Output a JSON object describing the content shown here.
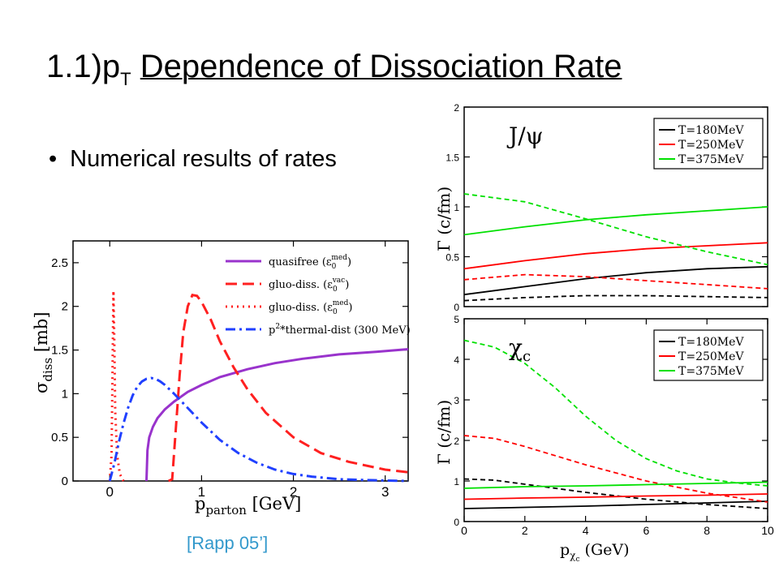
{
  "slide": {
    "title_prefix": "1.1)p",
    "title_sub": "T",
    "title_rest": "Dependence of Dissociation Rate",
    "bullet": "Numerical results of rates",
    "citation": "[Rapp 05’]"
  },
  "chart_data": [
    {
      "id": "sigma",
      "type": "line",
      "xlabel": "p",
      "xlabel_sub": "parton",
      "xlabel_unit": "[GeV]",
      "ylabel": "σ",
      "ylabel_sub": "diss",
      "ylabel_unit": "[mb]",
      "xlim": [
        -0.4,
        3.25
      ],
      "ylim": [
        0,
        2.75
      ],
      "xticks": [
        "0",
        "1",
        "2",
        "3"
      ],
      "yticks": [
        "0",
        "0.5",
        "1",
        "1.5",
        "2",
        "2.5"
      ],
      "series": [
        {
          "name": "quasifree (ε0med)",
          "legend_main": "quasifree (ε",
          "legend_sub": "0",
          "legend_sup": "med",
          "legend_end": ")",
          "color": "#9933cc",
          "dash": "solid",
          "x": [
            0.4,
            0.41,
            0.43,
            0.47,
            0.52,
            0.6,
            0.7,
            0.85,
            1.0,
            1.2,
            1.5,
            1.8,
            2.1,
            2.5,
            2.9,
            3.25
          ],
          "y": [
            0,
            0.35,
            0.5,
            0.62,
            0.72,
            0.82,
            0.91,
            1.02,
            1.1,
            1.19,
            1.28,
            1.35,
            1.4,
            1.45,
            1.48,
            1.51
          ]
        },
        {
          "name": "gluo-diss. (ε0vac)",
          "legend_main": "gluo-diss. (ε",
          "legend_sub": "0",
          "legend_sup": "vac",
          "legend_end": ")",
          "color": "#ff2020",
          "dash": "long",
          "x": [
            0.64,
            0.68,
            0.72,
            0.76,
            0.8,
            0.85,
            0.9,
            0.95,
            1.0,
            1.1,
            1.2,
            1.35,
            1.5,
            1.7,
            2.0,
            2.3,
            2.6,
            3.0,
            3.25
          ],
          "y": [
            0,
            0.02,
            0.6,
            1.2,
            1.7,
            2.0,
            2.13,
            2.12,
            2.05,
            1.85,
            1.6,
            1.3,
            1.05,
            0.78,
            0.5,
            0.32,
            0.22,
            0.13,
            0.1
          ]
        },
        {
          "name": "gluo-diss. (ε0med)",
          "legend_main": "gluo-diss. (ε",
          "legend_sub": "0",
          "legend_sup": "med",
          "legend_end": ")",
          "color": "#ff2020",
          "dash": "dot",
          "x": [
            0.0,
            0.02,
            0.03,
            0.04,
            0.05,
            0.06,
            0.08,
            0.11,
            0.15
          ],
          "y": [
            0,
            0.3,
            1.3,
            2.18,
            1.6,
            0.8,
            0.3,
            0.08,
            0
          ]
        },
        {
          "name": "p²*thermal-dist (300 MeV)",
          "legend_main": "p",
          "legend_sup": "2",
          "legend_end": "*thermal-dist (300 MeV)",
          "color": "#2040ff",
          "dash": "dashdot",
          "x": [
            0.0,
            0.05,
            0.1,
            0.15,
            0.2,
            0.25,
            0.3,
            0.35,
            0.4,
            0.45,
            0.5,
            0.55,
            0.6,
            0.7,
            0.8,
            0.9,
            1.0,
            1.2,
            1.4,
            1.6,
            1.8,
            2.0,
            2.2,
            2.5,
            2.8,
            3.25
          ],
          "y": [
            0,
            0.2,
            0.45,
            0.66,
            0.84,
            0.98,
            1.08,
            1.14,
            1.17,
            1.18,
            1.17,
            1.14,
            1.1,
            1.0,
            0.89,
            0.78,
            0.67,
            0.47,
            0.32,
            0.21,
            0.13,
            0.08,
            0.05,
            0.02,
            0.01,
            0.0
          ]
        }
      ]
    },
    {
      "id": "jpsi",
      "type": "line",
      "panel_label": "J/ψ",
      "ylabel": "Γ (c/fm)",
      "xlim": [
        0,
        10
      ],
      "ylim": [
        0,
        2
      ],
      "yticks": [
        "0",
        "0.5",
        "1",
        "1.5",
        "2"
      ],
      "legend": [
        {
          "name": "T=180MeV",
          "color": "#000000"
        },
        {
          "name": "T=250MeV",
          "color": "#ff0000"
        },
        {
          "name": "T=375MeV",
          "color": "#00e000"
        }
      ],
      "series": [
        {
          "name": "T=180MeV solid",
          "color": "#000000",
          "dash": "solid",
          "x": [
            0,
            2,
            4,
            6,
            8,
            10
          ],
          "y": [
            0.12,
            0.2,
            0.28,
            0.34,
            0.38,
            0.4
          ]
        },
        {
          "name": "T=180MeV dashed",
          "color": "#000000",
          "dash": "dash",
          "x": [
            0,
            2,
            4,
            6,
            8,
            10
          ],
          "y": [
            0.06,
            0.09,
            0.11,
            0.11,
            0.1,
            0.09
          ]
        },
        {
          "name": "T=250MeV solid",
          "color": "#ff0000",
          "dash": "solid",
          "x": [
            0,
            2,
            4,
            6,
            8,
            10
          ],
          "y": [
            0.38,
            0.46,
            0.53,
            0.58,
            0.61,
            0.64
          ]
        },
        {
          "name": "T=250MeV dashed",
          "color": "#ff0000",
          "dash": "dash",
          "x": [
            0,
            2,
            4,
            6,
            8,
            10
          ],
          "y": [
            0.27,
            0.32,
            0.3,
            0.26,
            0.22,
            0.18
          ]
        },
        {
          "name": "T=375MeV solid",
          "color": "#00e000",
          "dash": "solid",
          "x": [
            0,
            2,
            4,
            6,
            8,
            10
          ],
          "y": [
            0.72,
            0.8,
            0.87,
            0.92,
            0.96,
            1.0
          ]
        },
        {
          "name": "T=375MeV dashed",
          "color": "#00e000",
          "dash": "dash",
          "x": [
            0,
            2,
            4,
            6,
            8,
            10
          ],
          "y": [
            1.13,
            1.05,
            0.88,
            0.7,
            0.55,
            0.42
          ]
        }
      ]
    },
    {
      "id": "chic",
      "type": "line",
      "panel_label": "χc",
      "ylabel": "Γ (c/fm)",
      "xlabel": "p",
      "xlabel_sub": "χc",
      "xlabel_unit": "(GeV)",
      "xlim": [
        0,
        10
      ],
      "ylim": [
        0,
        5
      ],
      "xticks": [
        "0",
        "2",
        "4",
        "6",
        "8",
        "10"
      ],
      "yticks": [
        "0",
        "1",
        "2",
        "3",
        "4",
        "5"
      ],
      "legend": [
        {
          "name": "T=180MeV",
          "color": "#000000"
        },
        {
          "name": "T=250MeV",
          "color": "#ff0000"
        },
        {
          "name": "T=375MeV",
          "color": "#00e000"
        }
      ],
      "series": [
        {
          "name": "T=180MeV solid",
          "color": "#000000",
          "dash": "solid",
          "x": [
            0,
            2,
            4,
            6,
            8,
            10
          ],
          "y": [
            0.32,
            0.35,
            0.38,
            0.42,
            0.46,
            0.5
          ]
        },
        {
          "name": "T=180MeV dashed",
          "color": "#000000",
          "dash": "dash",
          "x": [
            0,
            1,
            2,
            4,
            6,
            8,
            10
          ],
          "y": [
            1.05,
            1.02,
            0.92,
            0.72,
            0.55,
            0.42,
            0.32
          ]
        },
        {
          "name": "T=250MeV solid",
          "color": "#ff0000",
          "dash": "solid",
          "x": [
            0,
            2,
            4,
            6,
            8,
            10
          ],
          "y": [
            0.55,
            0.58,
            0.6,
            0.63,
            0.65,
            0.68
          ]
        },
        {
          "name": "T=250MeV dashed",
          "color": "#ff0000",
          "dash": "dash",
          "x": [
            0,
            1,
            2,
            4,
            6,
            8,
            10
          ],
          "y": [
            2.12,
            2.05,
            1.85,
            1.4,
            1.0,
            0.7,
            0.48
          ]
        },
        {
          "name": "T=375MeV solid",
          "color": "#00e000",
          "dash": "solid",
          "x": [
            0,
            2,
            4,
            6,
            8,
            10
          ],
          "y": [
            0.82,
            0.86,
            0.88,
            0.91,
            0.94,
            0.97
          ]
        },
        {
          "name": "T=375MeV dashed",
          "color": "#00e000",
          "dash": "dash",
          "x": [
            0,
            1,
            2,
            3,
            4,
            5,
            6,
            7,
            8,
            9,
            10
          ],
          "y": [
            4.47,
            4.3,
            3.9,
            3.3,
            2.6,
            2.0,
            1.55,
            1.25,
            1.05,
            0.95,
            0.88
          ]
        }
      ]
    }
  ]
}
